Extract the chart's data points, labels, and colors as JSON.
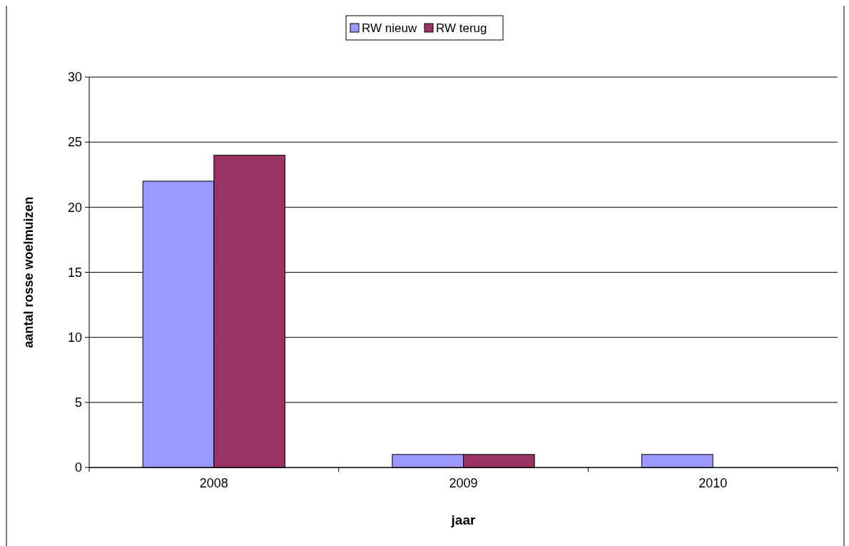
{
  "chart_data": {
    "type": "bar",
    "xlabel": "jaar",
    "ylabel": "aantal rosse woelmuizen",
    "categories": [
      "2008",
      "2009",
      "2010"
    ],
    "series": [
      {
        "name": "RW nieuw",
        "color": "#9999ff",
        "values": [
          22,
          1,
          1
        ]
      },
      {
        "name": "RW terug",
        "color": "#993366",
        "values": [
          24,
          1,
          null
        ]
      }
    ],
    "ylim": [
      0,
      30
    ],
    "yticks": [
      0,
      5,
      10,
      15,
      20,
      25,
      30
    ],
    "grid": "y",
    "legend": "top"
  }
}
